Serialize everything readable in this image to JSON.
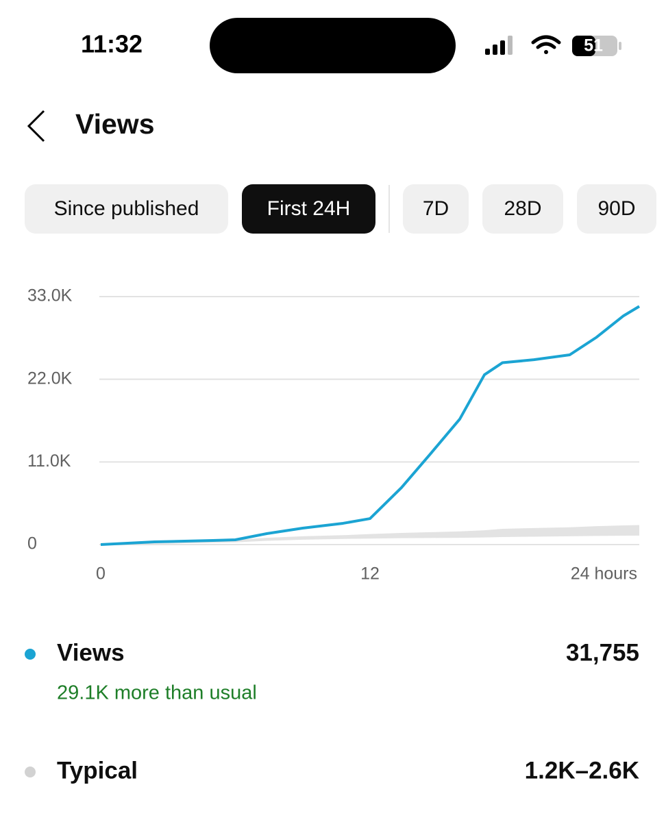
{
  "status_bar": {
    "time": "11:32",
    "battery": "51"
  },
  "header": {
    "title": "Views"
  },
  "tabs": [
    "Since published",
    "First 24H",
    "7D",
    "28D",
    "90D"
  ],
  "selected_tab": 1,
  "chart_data": {
    "type": "line",
    "x": [
      0,
      2.4,
      5,
      6,
      7.4,
      9,
      10.8,
      12,
      13.4,
      14.7,
      16,
      17.1,
      17.9,
      19.3,
      20.9,
      22.1,
      23.3,
      24
    ],
    "series": [
      {
        "name": "Views",
        "color": "#1ba4d3",
        "values": [
          0,
          360,
          550,
          640,
          1460,
          2190,
          2830,
          3460,
          7570,
          12100,
          16700,
          22600,
          24200,
          24600,
          25250,
          27600,
          30450,
          31700
        ]
      }
    ],
    "band": {
      "name": "Typical",
      "color": "#e3e3e3",
      "low": [
        0,
        100,
        250,
        300,
        500,
        650,
        750,
        800,
        850,
        880,
        900,
        950,
        1000,
        1050,
        1100,
        1150,
        1180,
        1200
      ],
      "high": [
        0,
        300,
        500,
        600,
        900,
        1100,
        1250,
        1400,
        1550,
        1650,
        1750,
        1900,
        2100,
        2200,
        2300,
        2450,
        2550,
        2600
      ]
    },
    "xlim": [
      0,
      24
    ],
    "xticks": [
      0,
      12,
      {
        "value": 24,
        "label": "24 hours"
      }
    ],
    "ylim": [
      0,
      33000
    ],
    "yticks": [
      0,
      {
        "value": 11000,
        "label": "11.0K"
      },
      {
        "value": 22000,
        "label": "22.0K"
      },
      {
        "value": 33000,
        "label": "33.0K"
      }
    ],
    "grid": true
  },
  "summary": [
    {
      "value": "31,755",
      "note": "29.1K more than usual"
    },
    {
      "value": "1.2K–2.6K"
    }
  ]
}
